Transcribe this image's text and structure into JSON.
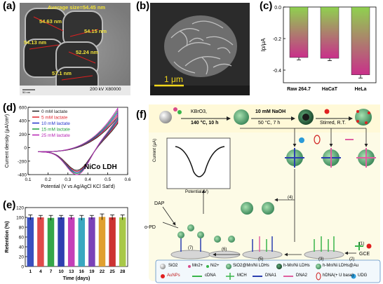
{
  "panels": {
    "a": {
      "label": "(a)",
      "average": "Average size=54.45 nm",
      "sizes": [
        "54.63 nm",
        "54.15 nm",
        "54.13 nm",
        "52.24 nm",
        "57.1 nm"
      ],
      "scalebar": "50 nm",
      "info": "200 kV X80000"
    },
    "b": {
      "label": "(b)",
      "scalebar": "1 μm"
    },
    "c": {
      "label": "(c)"
    },
    "d": {
      "label": "(d)",
      "material": "NiCo LDH"
    },
    "e": {
      "label": "(e)"
    },
    "f": {
      "label": "(f)",
      "reagent1": "KBrO3,",
      "cond1": "140 °C, 10 h",
      "reagent2": "10 mM NaOH",
      "cond2": "50 °C, 7 h",
      "cond3": "Stirred, R.T.",
      "plot_ylabel": "Current (μA)",
      "plot_xlabel": "Potential (V)",
      "dap": "DAP",
      "opd": "o-PD",
      "gce": "GCE",
      "steps": [
        "(1)",
        "(2)",
        "(3)",
        "(4)",
        "(5)",
        "(6)",
        "(7)"
      ],
      "legend": {
        "sio2": "SiO2",
        "mn": "Mn2+",
        "ni": "Ni2+",
        "sio2ldh": "SiO2@Mn/Ni LDHs",
        "hldh": "h-Mn/Ni LDHs",
        "hldhau": "h-Mn/Ni LDHs@Au",
        "aunps": "AuNPs",
        "cdna": "cDNA",
        "mch": "MCH",
        "dna1": "DNA1",
        "dna2": "DNA2",
        "hdna": "hDNA(+ U base)",
        "udg": "UDG"
      }
    }
  },
  "chart_data": [
    {
      "type": "bar",
      "panel": "c",
      "categories": [
        "Raw 264.7",
        "HaCaT",
        "HeLa"
      ],
      "values": [
        -0.32,
        -0.325,
        -0.43
      ],
      "errors": [
        0.015,
        0.015,
        0.02
      ],
      "ylabel": "Ip/μA",
      "yticks": [
        "-0.4",
        "-0.2",
        "0.0"
      ],
      "ylim": [
        0,
        -0.48
      ],
      "colors": [
        "#8fd14f",
        "#c92f8a"
      ]
    },
    {
      "type": "line",
      "panel": "d",
      "xlabel": "Potential (V vs Ag/AgCl KCl Sat'd)",
      "ylabel": "Current density (μA/cm²)",
      "xticks": [
        "0.1",
        "0.2",
        "0.3",
        "0.4",
        "0.5",
        "0.6"
      ],
      "yticks": [
        "-400",
        "-200",
        "0",
        "200",
        "400",
        "600"
      ],
      "xlim": [
        0.1,
        0.6
      ],
      "ylim": [
        -400,
        600
      ],
      "series": [
        {
          "name": "0 mM lactate",
          "color": "#222222"
        },
        {
          "name": "5 mM lactate",
          "color": "#e0262e"
        },
        {
          "name": "10 mM lactate",
          "color": "#2233cc"
        },
        {
          "name": "15 mM lactate",
          "color": "#1a9e3a"
        },
        {
          "name": "25 mM lactate",
          "color": "#b624b3"
        }
      ]
    },
    {
      "type": "bar",
      "panel": "e",
      "categories": [
        "1",
        "4",
        "7",
        "10",
        "13",
        "16",
        "19",
        "22",
        "25",
        "28"
      ],
      "values": [
        100,
        100,
        99,
        100,
        100,
        99,
        100,
        101,
        100,
        100
      ],
      "errors": [
        5,
        4,
        5,
        4,
        4,
        5,
        4,
        6,
        5,
        5
      ],
      "xlabel": "Time (days)",
      "ylabel": "Retention (%)",
      "yticks": [
        "0",
        "20",
        "40",
        "60",
        "80",
        "100",
        "120"
      ],
      "ylim": [
        0,
        120
      ],
      "colors": [
        "#3a4fbf",
        "#e14a4a",
        "#35a649",
        "#2f3fb0",
        "#c43fb8",
        "#3aa8c0",
        "#7a42b8",
        "#e0a030",
        "#cc3333",
        "#a8c848"
      ]
    }
  ]
}
